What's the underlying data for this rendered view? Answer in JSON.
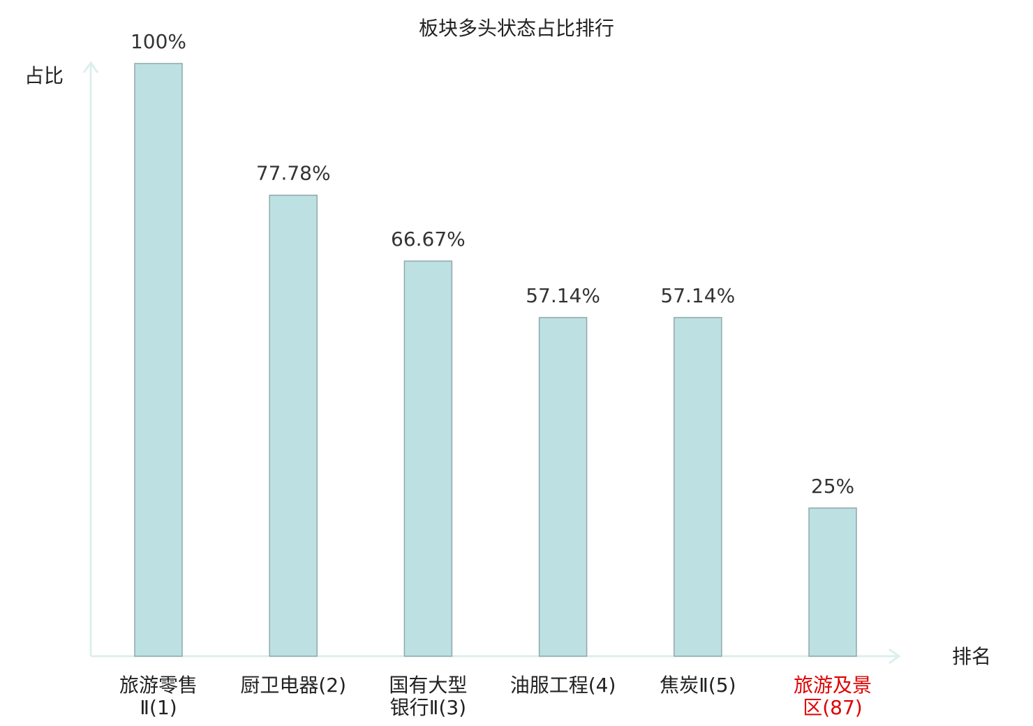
{
  "chart_data": {
    "type": "bar",
    "title": "板块多头状态占比排行",
    "y_label": "占比",
    "x_label": "排名",
    "categories": [
      "旅游零售\nⅡ(1)",
      "厨卫电器(2)",
      "国有大型\n银行Ⅱ(3)",
      "油服工程(4)",
      "焦炭Ⅱ(5)",
      "旅游及景\n区(87)"
    ],
    "values": [
      100,
      77.78,
      66.67,
      57.14,
      57.14,
      25
    ],
    "value_labels": [
      "100%",
      "77.78%",
      "66.67%",
      "57.14%",
      "57.14%",
      "25%"
    ],
    "color": "#bde0e3",
    "edge_color": "#8fa9ab",
    "highlight_index": 5,
    "highlight_color": "#e00000",
    "ylim": [
      0,
      100
    ]
  }
}
